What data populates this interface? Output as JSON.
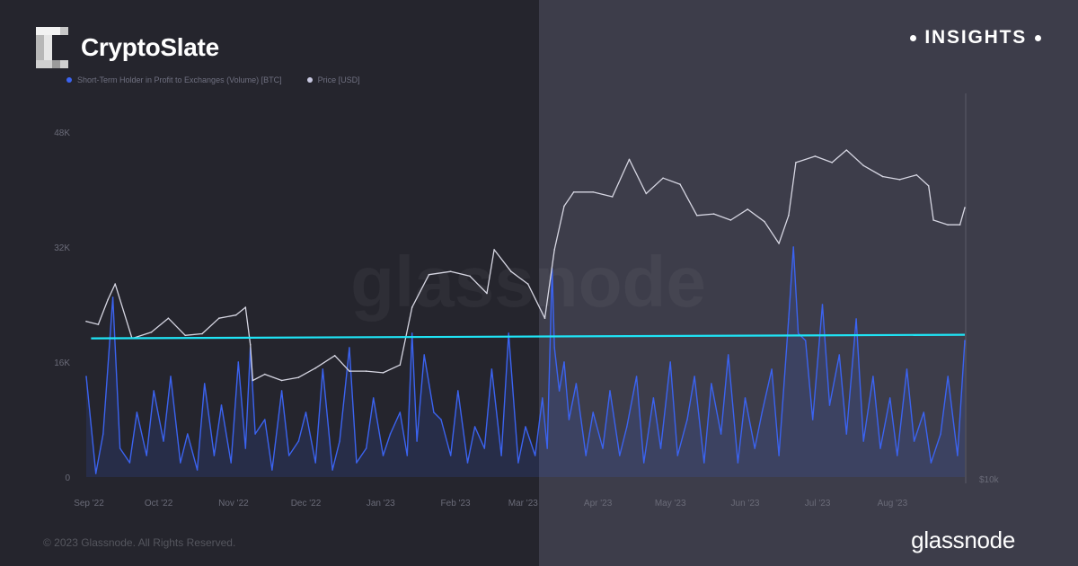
{
  "brand": {
    "name": "CryptoSlate",
    "badge": "INSIGHTS"
  },
  "footer": {
    "copyright": "© 2023 Glassnode. All Rights Reserved.",
    "logo_text": "glassnode"
  },
  "watermark": "glassnode",
  "colors": {
    "price": "#d6d6e2",
    "volume": "#3b63f0",
    "trend": "#1fe4f5",
    "left_panel": "#25252d",
    "right_panel": "#3d3d4a"
  },
  "chart_data": {
    "type": "line",
    "title": "",
    "legend": [
      "Short-Term Holder in Profit to Exchanges (Volume) [BTC]",
      "Price [USD]"
    ],
    "x_ticks": [
      "Sep '22",
      "Oct '22",
      "Nov '22",
      "Dec '22",
      "Jan '23",
      "Feb '23",
      "Mar '23",
      "Apr '23",
      "May '23",
      "Jun '23",
      "Jul '23",
      "Aug '23"
    ],
    "y_left_ticks": [
      "0",
      "16K",
      "32K",
      "48K"
    ],
    "y_left_range": [
      0,
      52000
    ],
    "y_right_label": "$10k",
    "y_right_range": [
      10000,
      34000
    ],
    "series": [
      {
        "name": "Short-Term Holder in Profit to Exchanges (Volume) [BTC]",
        "axis": "left",
        "dates": [
          "2022-09-01",
          "2022-09-05",
          "2022-09-08",
          "2022-09-12",
          "2022-09-15",
          "2022-09-19",
          "2022-09-22",
          "2022-09-26",
          "2022-09-29",
          "2022-10-03",
          "2022-10-06",
          "2022-10-10",
          "2022-10-13",
          "2022-10-17",
          "2022-10-20",
          "2022-10-24",
          "2022-10-27",
          "2022-10-31",
          "2022-11-03",
          "2022-11-06",
          "2022-11-08",
          "2022-11-10",
          "2022-11-14",
          "2022-11-17",
          "2022-11-21",
          "2022-11-24",
          "2022-11-28",
          "2022-12-01",
          "2022-12-05",
          "2022-12-08",
          "2022-12-12",
          "2022-12-15",
          "2022-12-19",
          "2022-12-22",
          "2022-12-26",
          "2022-12-29",
          "2023-01-02",
          "2023-01-05",
          "2023-01-09",
          "2023-01-12",
          "2023-01-14",
          "2023-01-16",
          "2023-01-19",
          "2023-01-23",
          "2023-01-26",
          "2023-01-30",
          "2023-02-02",
          "2023-02-06",
          "2023-02-09",
          "2023-02-13",
          "2023-02-16",
          "2023-02-20",
          "2023-02-23",
          "2023-02-27",
          "2023-03-02",
          "2023-03-06",
          "2023-03-09",
          "2023-03-11",
          "2023-03-13",
          "2023-03-14",
          "2023-03-16",
          "2023-03-18",
          "2023-03-20",
          "2023-03-23",
          "2023-03-27",
          "2023-03-30",
          "2023-04-03",
          "2023-04-06",
          "2023-04-10",
          "2023-04-13",
          "2023-04-17",
          "2023-04-20",
          "2023-04-24",
          "2023-04-27",
          "2023-05-01",
          "2023-05-04",
          "2023-05-08",
          "2023-05-11",
          "2023-05-15",
          "2023-05-18",
          "2023-05-22",
          "2023-05-25",
          "2023-05-29",
          "2023-06-01",
          "2023-06-05",
          "2023-06-08",
          "2023-06-12",
          "2023-06-15",
          "2023-06-19",
          "2023-06-21",
          "2023-06-23",
          "2023-06-26",
          "2023-06-29",
          "2023-07-03",
          "2023-07-06",
          "2023-07-10",
          "2023-07-13",
          "2023-07-17",
          "2023-07-20",
          "2023-07-24",
          "2023-07-27",
          "2023-07-31",
          "2023-08-03",
          "2023-08-07",
          "2023-08-10",
          "2023-08-14",
          "2023-08-17",
          "2023-08-21",
          "2023-08-24",
          "2023-08-28",
          "2023-08-31"
        ],
        "values": [
          14000,
          500,
          6000,
          25000,
          4000,
          2000,
          9000,
          3000,
          12000,
          5000,
          14000,
          2000,
          6000,
          1000,
          13000,
          3000,
          10000,
          2000,
          16000,
          4000,
          18000,
          6000,
          8000,
          1000,
          12000,
          3000,
          5000,
          9000,
          2000,
          15000,
          1000,
          5000,
          18000,
          2000,
          4000,
          11000,
          3000,
          6000,
          9000,
          3000,
          20000,
          5000,
          17000,
          9000,
          8000,
          3000,
          12000,
          2000,
          7000,
          4000,
          15000,
          3000,
          20000,
          2000,
          7000,
          3000,
          11000,
          4000,
          29000,
          18000,
          12000,
          16000,
          8000,
          13000,
          3000,
          9000,
          4000,
          12000,
          3000,
          7000,
          14000,
          2000,
          11000,
          4000,
          16000,
          3000,
          8000,
          14000,
          2000,
          13000,
          6000,
          17000,
          2000,
          11000,
          4000,
          9000,
          15000,
          3000,
          22000,
          32000,
          20000,
          19000,
          8000,
          24000,
          10000,
          17000,
          6000,
          22000,
          5000,
          14000,
          4000,
          11000,
          3000,
          15000,
          5000,
          9000,
          2000,
          6000,
          14000,
          3000,
          19000
        ]
      },
      {
        "name": "Price [USD]",
        "axis": "right",
        "dates": [
          "2022-09-01",
          "2022-09-06",
          "2022-09-10",
          "2022-09-13",
          "2022-09-20",
          "2022-09-28",
          "2022-10-05",
          "2022-10-12",
          "2022-10-19",
          "2022-10-26",
          "2022-11-02",
          "2022-11-06",
          "2022-11-08",
          "2022-11-09",
          "2022-11-14",
          "2022-11-21",
          "2022-11-28",
          "2022-12-05",
          "2022-12-13",
          "2022-12-19",
          "2022-12-26",
          "2023-01-02",
          "2023-01-09",
          "2023-01-14",
          "2023-01-21",
          "2023-01-30",
          "2023-02-07",
          "2023-02-14",
          "2023-02-17",
          "2023-02-24",
          "2023-03-03",
          "2023-03-10",
          "2023-03-14",
          "2023-03-18",
          "2023-03-22",
          "2023-03-30",
          "2023-04-07",
          "2023-04-14",
          "2023-04-21",
          "2023-04-28",
          "2023-05-05",
          "2023-05-12",
          "2023-05-19",
          "2023-05-26",
          "2023-06-02",
          "2023-06-09",
          "2023-06-15",
          "2023-06-19",
          "2023-06-22",
          "2023-06-30",
          "2023-07-07",
          "2023-07-13",
          "2023-07-20",
          "2023-07-28",
          "2023-08-04",
          "2023-08-11",
          "2023-08-16",
          "2023-08-18",
          "2023-08-24",
          "2023-08-29",
          "2023-08-31"
        ],
        "values": [
          20000,
          19800,
          21400,
          22400,
          18900,
          19300,
          20200,
          19100,
          19200,
          20200,
          20400,
          20900,
          18500,
          16200,
          16600,
          16200,
          16400,
          17000,
          17800,
          16800,
          16800,
          16700,
          17200,
          20900,
          23000,
          23200,
          22900,
          21800,
          24600,
          23200,
          22400,
          20200,
          24600,
          27400,
          28300,
          28300,
          28000,
          30400,
          28200,
          29200,
          28800,
          26800,
          26900,
          26500,
          27200,
          26400,
          25000,
          26800,
          30200,
          30600,
          30200,
          31000,
          30000,
          29300,
          29100,
          29400,
          28700,
          26500,
          26200,
          26200,
          27300
        ]
      }
    ],
    "trend_line": {
      "start": [
        "2022-09-03",
        19300
      ],
      "end": [
        "2023-08-31",
        19800
      ]
    }
  }
}
